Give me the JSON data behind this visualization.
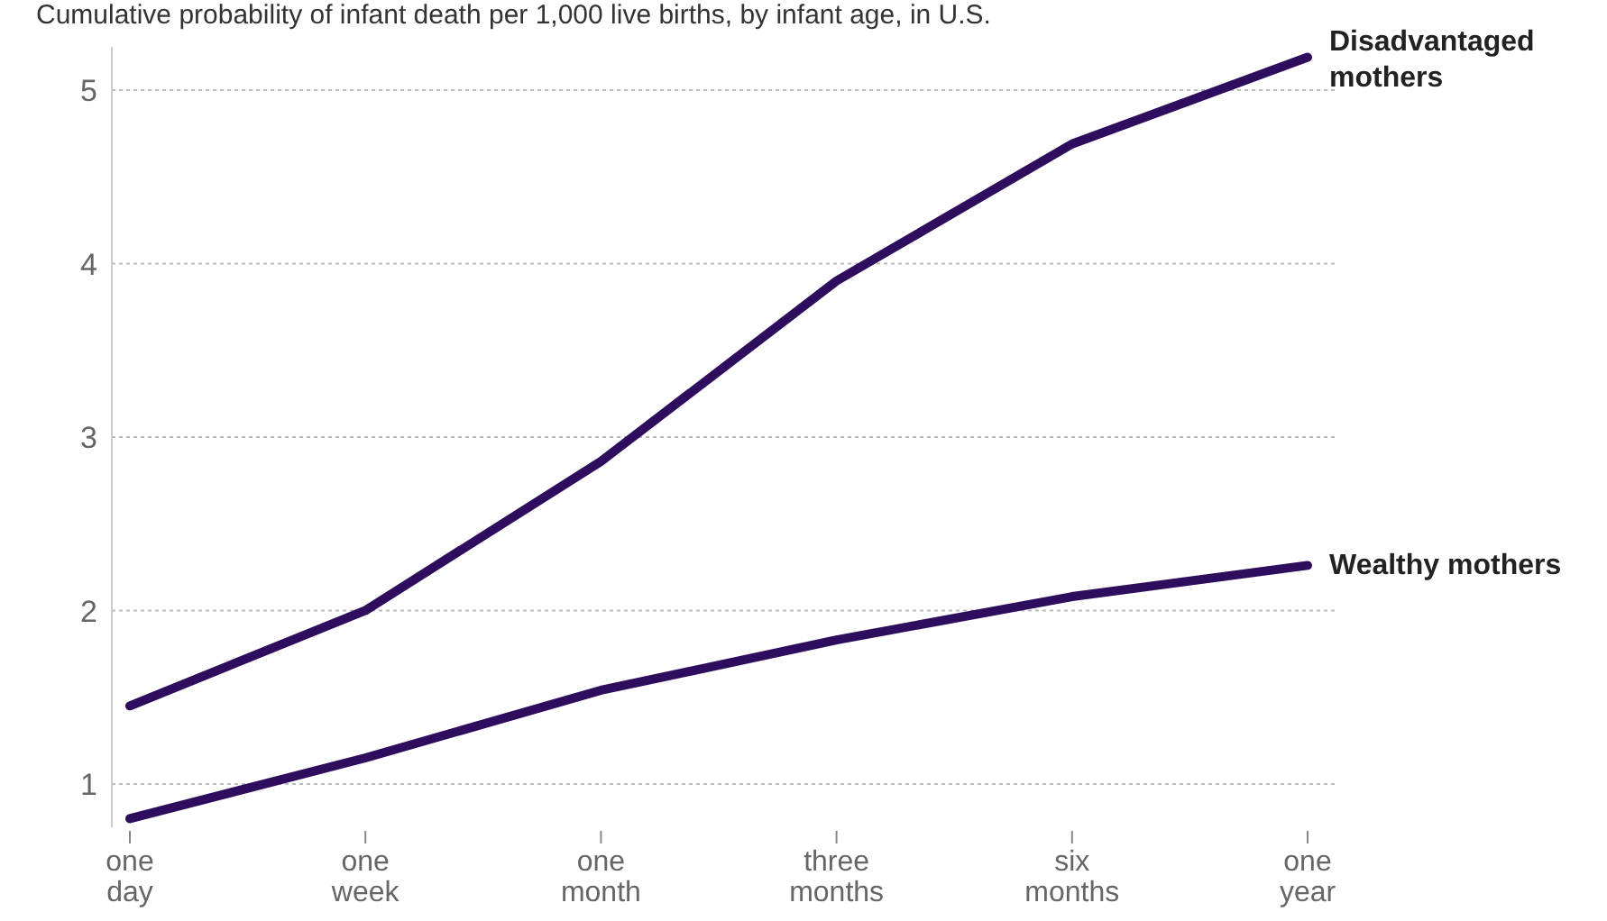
{
  "chart_data": {
    "type": "line",
    "title": "Cumulative probability of infant death per 1,000 live births, by infant age, in U.S.",
    "categories": [
      "one day",
      "one week",
      "one month",
      "three months",
      "six months",
      "one year"
    ],
    "series": [
      {
        "name": "Disadvantaged mothers",
        "color": "#2e0c5e",
        "values": [
          1.45,
          2.0,
          2.86,
          3.9,
          4.69,
          5.19
        ]
      },
      {
        "name": "Wealthy mothers",
        "color": "#2e0c5e",
        "values": [
          0.8,
          1.15,
          1.54,
          1.83,
          2.08,
          2.26
        ]
      }
    ],
    "ylim": [
      0.75,
      5.25
    ],
    "yticks": [
      1,
      2,
      3,
      4,
      5
    ],
    "grid": "y",
    "legend": false,
    "marker": "none",
    "line_style": "solid"
  }
}
